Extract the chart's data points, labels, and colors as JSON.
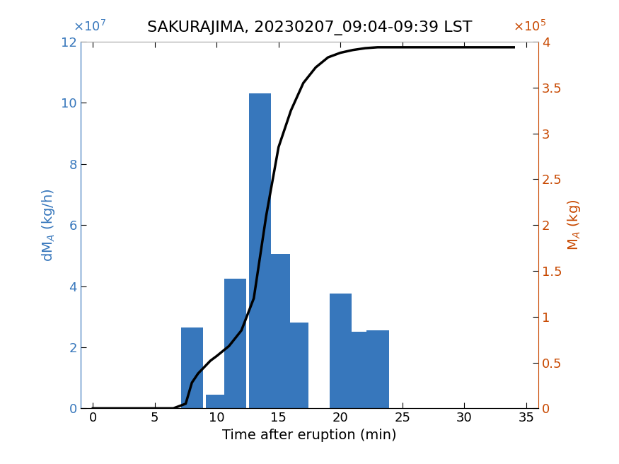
{
  "title": "SAKURAJIMA, 20230207_09:04-09:39 LST",
  "xlabel": "Time after eruption (min)",
  "ylabel_left": "dM$_A$ (kg/h)",
  "ylabel_right": "M$_A$ (kg)",
  "bar_centers": [
    8,
    10,
    11.5,
    13.5,
    15,
    16.5,
    20,
    21.5,
    23
  ],
  "bar_heights": [
    26500000.0,
    4500000.0,
    42500000.0,
    103000000.0,
    50500000.0,
    28000000.0,
    37500000.0,
    25000000.0,
    25500000.0
  ],
  "bar_width": 1.8,
  "bar_color": "#3777bc",
  "line_x": [
    0,
    5.5,
    6.5,
    7.5,
    8.0,
    8.5,
    9.0,
    9.5,
    10.0,
    11.0,
    12.0,
    13.0,
    14.0,
    15.0,
    16.0,
    17.0,
    18.0,
    19.0,
    20.0,
    21.0,
    22.0,
    23.0,
    25.0,
    28.0,
    34.0
  ],
  "line_y": [
    0,
    0,
    0,
    5000.0,
    28000.0,
    38000.0,
    45000.0,
    52000.0,
    57000.0,
    68000.0,
    85000.0,
    120000.0,
    210000.0,
    285000.0,
    325000.0,
    355000.0,
    372000.0,
    383000.0,
    388000.0,
    391000.0,
    393000.0,
    394000.0,
    394000.0,
    394000.0,
    394000.0
  ],
  "xlim": [
    -1,
    36
  ],
  "ylim_left": [
    0,
    120000000.0
  ],
  "ylim_right": [
    0,
    400000.0
  ],
  "xticks": [
    0,
    5,
    10,
    15,
    20,
    25,
    30,
    35
  ],
  "yticks_left": [
    0,
    20000000.0,
    40000000.0,
    60000000.0,
    80000000.0,
    100000000.0,
    120000000.0
  ],
  "yticks_left_labels": [
    "0",
    "2",
    "4",
    "6",
    "8",
    "10",
    "12"
  ],
  "yticks_right": [
    0,
    50000.0,
    100000.0,
    150000.0,
    200000.0,
    250000.0,
    300000.0,
    350000.0,
    400000.0
  ],
  "yticks_right_labels": [
    "0",
    "0.5",
    "1",
    "1.5",
    "2",
    "2.5",
    "3",
    "3.5",
    "4"
  ],
  "left_color": "#3777bc",
  "right_color": "#c84800",
  "line_color": "#000000",
  "line_width": 2.5,
  "title_fontsize": 16,
  "label_fontsize": 14,
  "tick_fontsize": 13,
  "exponent_left": "×10^7",
  "exponent_right": "×10^5"
}
